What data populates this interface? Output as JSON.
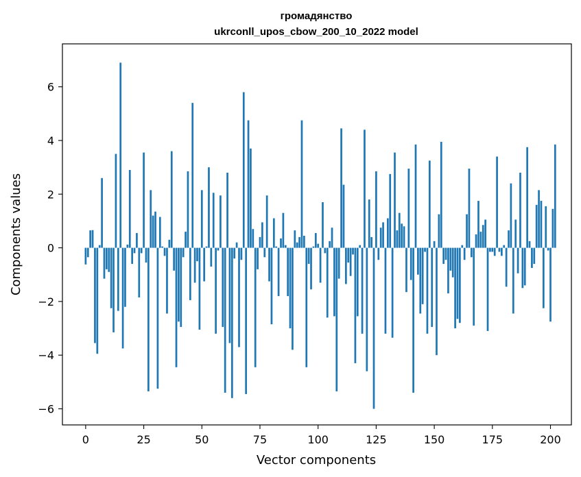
{
  "chart_data": {
    "type": "bar",
    "title_line1": "громадянство",
    "title_line2": "ukrconll_upos_cbow_200_10_2022 model",
    "xlabel": "Vector components",
    "ylabel": "Components values",
    "xlim": [
      -10,
      209
    ],
    "ylim": [
      -6.6,
      7.6
    ],
    "xticks": [
      0,
      25,
      50,
      75,
      100,
      125,
      150,
      175,
      200
    ],
    "yticks": [
      -6,
      -4,
      -2,
      0,
      2,
      4,
      6
    ],
    "bar_color": "#1f77b4",
    "values": [
      -0.62,
      -0.35,
      0.65,
      0.66,
      -3.55,
      -3.95,
      0.1,
      2.6,
      -1.15,
      -0.8,
      -0.9,
      -2.25,
      -3.15,
      3.5,
      -2.35,
      6.9,
      -3.75,
      -2.2,
      0.12,
      2.9,
      -0.6,
      -0.2,
      0.55,
      -1.85,
      -0.2,
      3.55,
      -0.55,
      -5.35,
      2.15,
      1.2,
      1.35,
      -5.25,
      1.15,
      0.05,
      -0.3,
      -2.45,
      0.3,
      3.6,
      -0.85,
      -4.45,
      -2.75,
      -2.95,
      -0.35,
      0.6,
      2.85,
      -1.95,
      5.4,
      -1.3,
      -0.5,
      -3.05,
      2.15,
      -1.25,
      0.05,
      3.0,
      -0.7,
      2.05,
      -3.2,
      -0.1,
      1.95,
      -2.95,
      -5.4,
      2.8,
      -3.55,
      -5.6,
      -0.4,
      0.2,
      -3.7,
      -0.45,
      5.8,
      -5.45,
      4.75,
      3.7,
      0.7,
      -4.45,
      -0.8,
      0.4,
      0.95,
      -0.35,
      1.95,
      -1.25,
      -2.85,
      1.1,
      0.05,
      -1.8,
      0.35,
      1.3,
      0.1,
      -1.8,
      -3.0,
      -3.8,
      0.65,
      0.2,
      0.4,
      4.75,
      0.45,
      -4.45,
      -0.6,
      -1.55,
      0.05,
      0.55,
      0.15,
      -1.3,
      1.7,
      -0.2,
      -2.6,
      0.25,
      0.75,
      -2.55,
      -5.35,
      -1.15,
      4.45,
      2.35,
      -1.35,
      -0.55,
      -1.05,
      -0.25,
      -4.3,
      -2.55,
      0.1,
      -3.2,
      4.4,
      -4.6,
      1.8,
      0.4,
      -6.0,
      2.85,
      -0.45,
      0.75,
      0.95,
      -3.2,
      1.1,
      2.75,
      -3.35,
      3.55,
      0.65,
      1.3,
      0.9,
      0.8,
      -1.65,
      2.95,
      -1.2,
      -5.4,
      3.85,
      -1.0,
      -2.45,
      -2.1,
      -0.15,
      -3.2,
      3.25,
      -2.95,
      0.25,
      -4.0,
      1.25,
      3.95,
      -0.6,
      -0.45,
      -1.7,
      -0.85,
      -1.1,
      -3.0,
      -2.65,
      -2.8,
      0.1,
      -0.45,
      1.25,
      2.95,
      -0.35,
      -2.9,
      0.5,
      1.75,
      0.6,
      0.85,
      1.05,
      -3.1,
      -0.15,
      -0.15,
      -0.3,
      3.4,
      -0.15,
      -0.3,
      0.1,
      -1.45,
      0.65,
      2.4,
      -2.45,
      1.05,
      -0.95,
      2.8,
      -1.5,
      -1.4,
      3.75,
      0.25,
      -0.75,
      -0.6,
      1.6,
      2.15,
      1.75,
      -2.25,
      1.55,
      -0.1,
      -2.75,
      1.45,
      3.85
    ]
  }
}
